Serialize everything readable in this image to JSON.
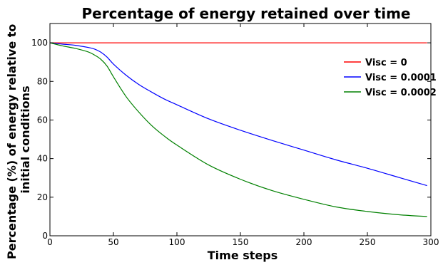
{
  "chart_data": {
    "type": "line",
    "title": "Percentage of energy retained over time",
    "xlabel": "Time steps",
    "ylabel_lines": [
      "Percentage (%) of energy relative to",
      "initial conditions"
    ],
    "xlim": [
      0,
      300
    ],
    "ylim": [
      0,
      110
    ],
    "xticks": [
      0,
      50,
      100,
      150,
      200,
      250,
      300
    ],
    "yticks": [
      0,
      20,
      40,
      60,
      80,
      100
    ],
    "grid": false,
    "legend_position": "upper-right",
    "x": [
      0,
      10,
      20,
      30,
      35,
      40,
      45,
      50,
      60,
      70,
      80,
      90,
      100,
      125,
      150,
      175,
      200,
      225,
      250,
      275,
      297
    ],
    "series": [
      {
        "name": "Visc = 0",
        "color": "#ff0000",
        "values": [
          100,
          100,
          100,
          100,
          100,
          100,
          100,
          100,
          100,
          100,
          100,
          100,
          100,
          100,
          100,
          100,
          100,
          100,
          100,
          100,
          100
        ]
      },
      {
        "name": "Visc = 0.0001",
        "color": "#0000ff",
        "values": [
          100,
          99.3,
          98.7,
          97.6,
          96.8,
          95.2,
          92.6,
          89.0,
          83.2,
          78.4,
          74.5,
          70.9,
          67.9,
          60.6,
          54.7,
          49.4,
          44.4,
          39.4,
          35.0,
          30.2,
          26
        ]
      },
      {
        "name": "Visc = 0.0002",
        "color": "#008000",
        "values": [
          100,
          98.4,
          97.1,
          95.3,
          93.7,
          91.5,
          87.9,
          82.4,
          72.1,
          64.1,
          57.2,
          51.7,
          47.0,
          36.7,
          29.3,
          23.4,
          18.9,
          15.0,
          12.6,
          10.9,
          10
        ]
      }
    ]
  }
}
